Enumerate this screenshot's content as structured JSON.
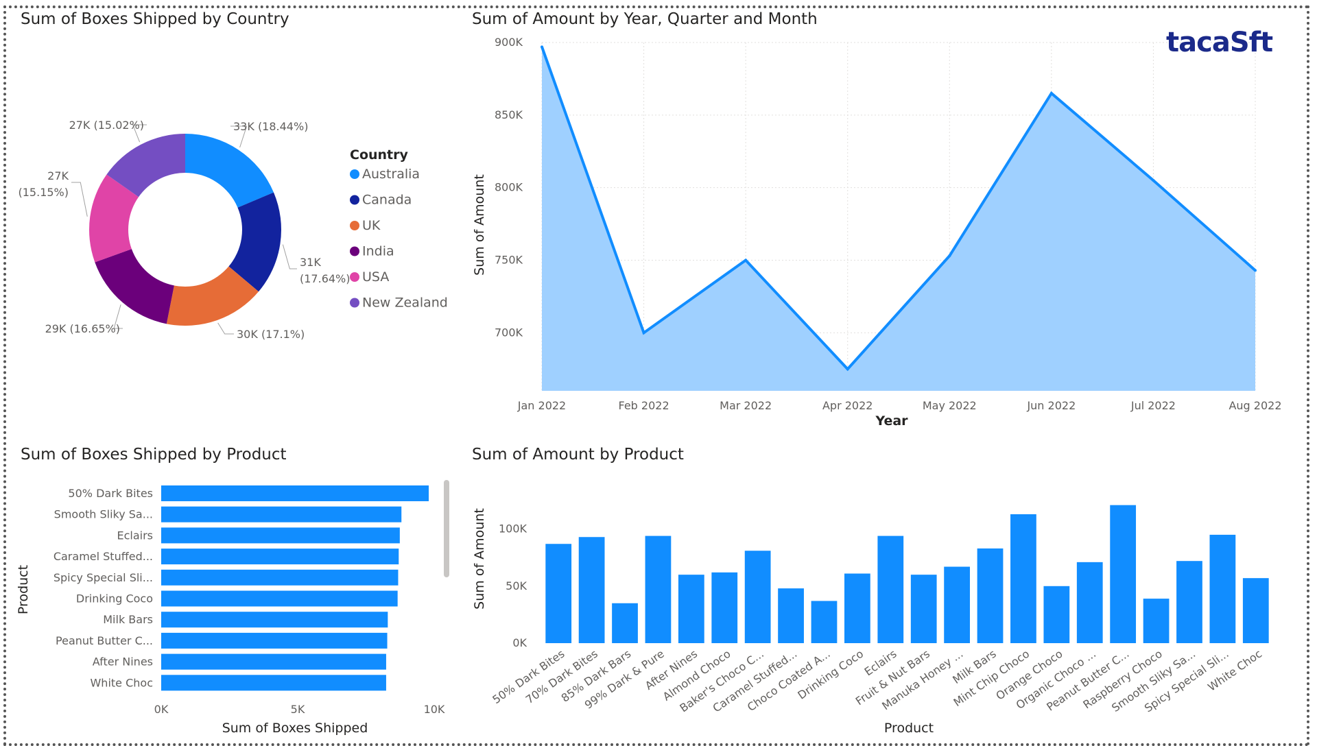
{
  "brand": {
    "text_a": "taca",
    "text_b": "S",
    "text_c": "ft",
    "color": "#1b2a8a",
    "accent": "#f0a020"
  },
  "chart_data": [
    {
      "id": "donut",
      "type": "pie",
      "title": "Sum of Boxes Shipped by Country",
      "legend_title": "Country",
      "slices": [
        {
          "name": "Australia",
          "value": 33,
          "label": "33K (18.44%)",
          "color": "#118dff"
        },
        {
          "name": "Canada",
          "value": 31,
          "label_lines": [
            "31K",
            "(17.64%)"
          ],
          "color": "#12239e"
        },
        {
          "name": "UK",
          "value": 30,
          "label": "30K (17.1%)",
          "color": "#e66c37"
        },
        {
          "name": "India",
          "value": 29,
          "label": "29K (16.65%)",
          "color": "#6b007b"
        },
        {
          "name": "USA",
          "value": 27,
          "label_lines": [
            "27K",
            "(15.15%)"
          ],
          "color": "#e044a7"
        },
        {
          "name": "New Zealand",
          "value": 27,
          "label": "27K (15.02%)",
          "color": "#744ec2"
        }
      ]
    },
    {
      "id": "area",
      "type": "area",
      "title": "Sum of Amount by Year, Quarter and Month",
      "xlabel": "Year",
      "ylabel": "Sum of Amount",
      "categories": [
        "Jan 2022",
        "Feb 2022",
        "Mar 2022",
        "Apr 2022",
        "May 2022",
        "Jun 2022",
        "Jul 2022",
        "Aug 2022"
      ],
      "values": [
        897,
        700,
        750,
        675,
        753,
        865,
        805,
        743
      ],
      "yticks": [
        700,
        750,
        800,
        850,
        900
      ],
      "ytick_labels": [
        "700K",
        "750K",
        "800K",
        "850K",
        "900K"
      ],
      "ylim": [
        660,
        900
      ],
      "color": "#118dff"
    },
    {
      "id": "hbar",
      "type": "bar",
      "orientation": "horizontal",
      "title": "Sum of Boxes Shipped by Product",
      "xlabel": "Sum of Boxes Shipped",
      "ylabel": "Product",
      "categories": [
        "50% Dark Bites",
        "Smooth Sliky Sa...",
        "Eclairs",
        "Caramel Stuffed...",
        "Spicy Special Sli...",
        "Drinking Coco",
        "Milk Bars",
        "Peanut Butter C...",
        "After Nines",
        "White Choc"
      ],
      "values": [
        9.8,
        8.8,
        8.74,
        8.7,
        8.68,
        8.66,
        8.3,
        8.28,
        8.24,
        8.24
      ],
      "xticks": [
        0,
        5,
        10
      ],
      "xtick_labels": [
        "0K",
        "5K",
        "10K"
      ],
      "xlim": [
        0,
        10
      ],
      "color": "#118dff"
    },
    {
      "id": "vbar",
      "type": "bar",
      "title": "Sum of Amount by Product",
      "xlabel": "Product",
      "ylabel": "Sum of Amount",
      "categories": [
        "50% Dark Bites",
        "70% Dark Bites",
        "85% Dark Bars",
        "99% Dark & Pure",
        "After Nines",
        "Almond Choco",
        "Baker's Choco C...",
        "Caramel Stuffed...",
        "Choco Coated A...",
        "Drinking Coco",
        "Eclairs",
        "Fruit & Nut Bars",
        "Manuka Honey ...",
        "Milk Bars",
        "Mint Chip Choco",
        "Orange Choco",
        "Organic Choco ...",
        "Peanut Butter C...",
        "Raspberry Choco",
        "Smooth Sliky Sa...",
        "Spicy Special Sli...",
        "White Choc"
      ],
      "values": [
        87,
        93,
        35,
        94,
        60,
        62,
        81,
        48,
        37,
        61,
        94,
        60,
        67,
        83,
        113,
        50,
        71,
        121,
        39,
        72,
        95,
        57
      ],
      "yticks": [
        0,
        50,
        100
      ],
      "ytick_labels": [
        "0K",
        "50K",
        "100K"
      ],
      "ylim": [
        0,
        125
      ],
      "color": "#118dff"
    }
  ]
}
